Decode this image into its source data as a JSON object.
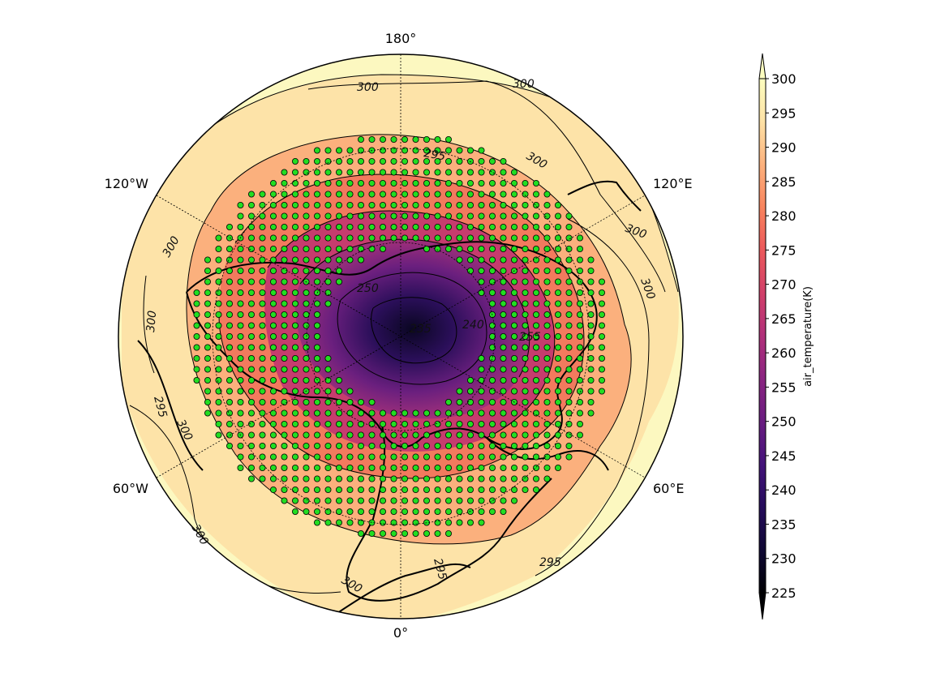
{
  "map": {
    "projection": "north-polar-stereographic",
    "lon_labels": {
      "top": "180°",
      "bottom": "0°",
      "upper_left": "120°W",
      "upper_right": "120°E",
      "lower_left": "60°W",
      "lower_right": "60°E"
    },
    "contour_labels": [
      "300",
      "300",
      "300",
      "300",
      "300",
      "300",
      "300",
      "300",
      "300",
      "300",
      "295",
      "295",
      "295",
      "295",
      "250",
      "235",
      "240",
      "255"
    ],
    "stipple_color": "#22dd22"
  },
  "colorbar": {
    "label": "air_temperature(K)",
    "ticks": [
      "300",
      "295",
      "290",
      "285",
      "280",
      "275",
      "270",
      "265",
      "260",
      "255",
      "250",
      "245",
      "240",
      "235",
      "230",
      "225"
    ],
    "colors": [
      "#fcf8c0",
      "#fde2a4",
      "#fca772",
      "#f6785b",
      "#e4505d",
      "#c43b6f",
      "#a02c7a",
      "#7d2480",
      "#5a1b7b",
      "#3a1066",
      "#1f0a45",
      "#0c0626",
      "#000004"
    ]
  }
}
